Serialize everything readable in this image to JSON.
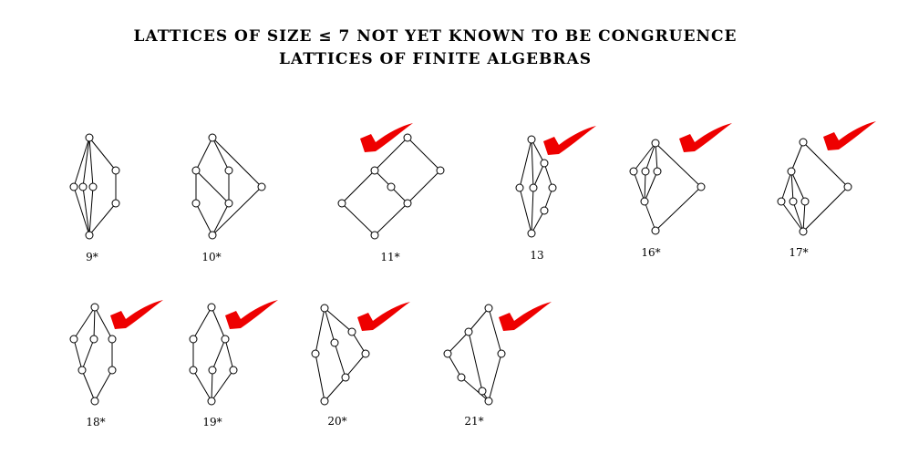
{
  "title": {
    "line1": "LATTICES OF SIZE ≤ 7 NOT YET KNOWN TO BE CONGRUENCE",
    "line2": "LATTICES OF FINITE ALGEBRAS"
  },
  "colors": {
    "check": "#ee0000",
    "node_fill": "#ffffff",
    "stroke": "#000000"
  },
  "lattices": [
    {
      "label": "9*",
      "checked": false
    },
    {
      "label": "10*",
      "checked": false
    },
    {
      "label": "11*",
      "checked": true
    },
    {
      "label": "13",
      "checked": true
    },
    {
      "label": "16*",
      "checked": true
    },
    {
      "label": "17*",
      "checked": true
    },
    {
      "label": "18*",
      "checked": true
    },
    {
      "label": "19*",
      "checked": true
    },
    {
      "label": "20*",
      "checked": true
    },
    {
      "label": "21*",
      "checked": true
    }
  ]
}
